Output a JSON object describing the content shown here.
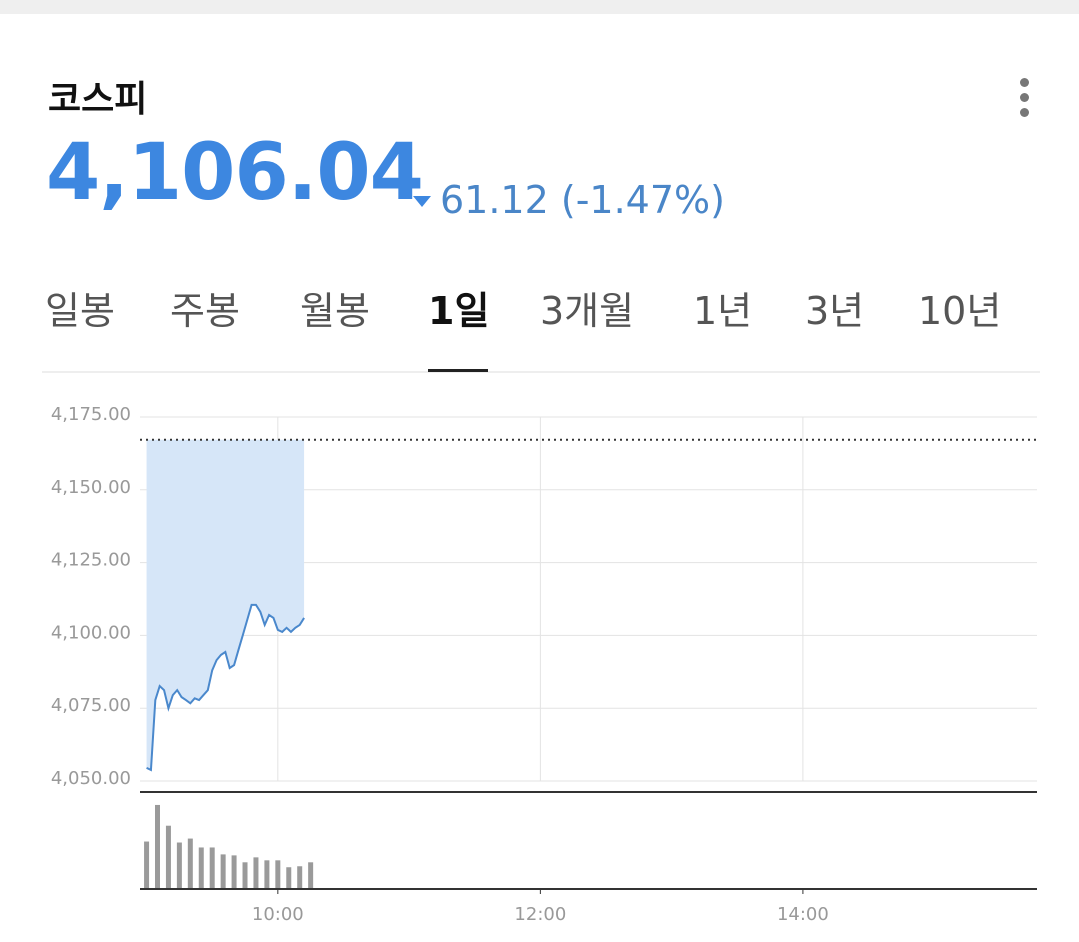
{
  "header": {
    "title": "코스피",
    "price": "4,106.04",
    "change": "61.12 (-1.47%)"
  },
  "tabs": {
    "items": [
      "일봉",
      "주봉",
      "월봉",
      "1일",
      "3개월",
      "1년",
      "3년",
      "10년"
    ],
    "selected": 3
  },
  "chart_data": {
    "type": "line",
    "x": [
      "09:00",
      "09:02",
      "09:04",
      "09:06",
      "09:08",
      "09:10",
      "09:12",
      "09:14",
      "09:16",
      "09:18",
      "09:20",
      "09:22",
      "09:24",
      "09:26",
      "09:28",
      "09:30",
      "09:32",
      "09:34",
      "09:36",
      "09:38",
      "09:40",
      "09:42",
      "09:44",
      "09:46",
      "09:48",
      "09:50",
      "09:52",
      "09:54",
      "09:56",
      "09:58",
      "10:00",
      "10:02",
      "10:04",
      "10:06",
      "10:08",
      "10:10",
      "10:12"
    ],
    "values": [
      4054.5,
      4053.8,
      4077.8,
      4082.6,
      4081.2,
      4075,
      4079.5,
      4081.2,
      4078.8,
      4077.8,
      4076.7,
      4078.4,
      4077.8,
      4079.5,
      4081.2,
      4088,
      4091.5,
      4093.3,
      4094.3,
      4088.8,
      4089.8,
      4095,
      4100.1,
      4105.3,
      4110.5,
      4110.5,
      4108.1,
      4103.6,
      4107,
      4106,
      4101.9,
      4101.2,
      4102.6,
      4101.2,
      4102.6,
      4103.6,
      4106
    ],
    "color": "#4a88cc",
    "fill_color": "#d6e6f8",
    "reference_line": 4167.2,
    "ylim": [
      4050,
      4175
    ],
    "yticks": [
      {
        "value": 4050,
        "label": "4,050.00"
      },
      {
        "value": 4075,
        "label": "4,075.00"
      },
      {
        "value": 4100,
        "label": "4,100.00"
      },
      {
        "value": 4125,
        "label": "4,125.00"
      },
      {
        "value": 4150,
        "label": "4,150.00"
      },
      {
        "value": 4175,
        "label": "4,175.00"
      }
    ],
    "xlim": [
      "08:57",
      "15:47"
    ],
    "xticks": [
      "10:00",
      "12:00",
      "14:00"
    ],
    "grid": true,
    "volume": {
      "x": [
        "09:00",
        "09:05",
        "09:10",
        "09:15",
        "09:20",
        "09:25",
        "09:30",
        "09:35",
        "09:40",
        "09:45",
        "09:50",
        "09:55",
        "10:00",
        "10:05",
        "10:10",
        "10:15"
      ],
      "values": [
        48,
        85,
        64,
        47,
        51,
        42,
        42,
        35,
        34,
        27,
        32,
        29,
        29,
        22,
        23,
        27
      ],
      "ylim": [
        0,
        90
      ],
      "color": "#9a9a9a"
    }
  }
}
